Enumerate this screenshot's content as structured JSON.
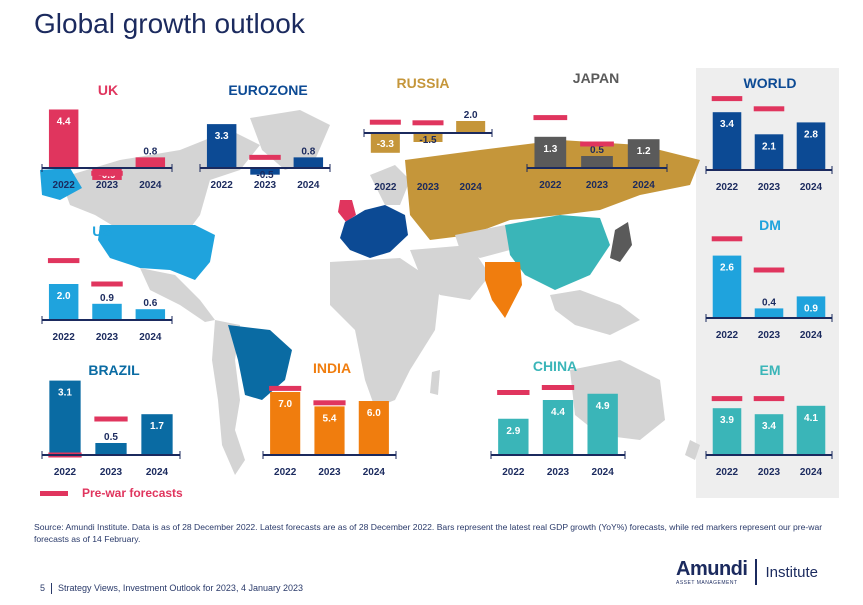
{
  "title": "Global growth outlook",
  "legend": {
    "label": "Pre-war forecasts",
    "color": "#e0355e"
  },
  "source": "Source: Amundi Institute. Data is as of 28 December 2022. Latest forecasts are as of 28 December 2022. Bars represent the latest real GDP growth (YoY%) forecasts, while red markers represent our pre-war forecasts as of 14 February.",
  "footer": {
    "page": "5",
    "text": "Strategy Views, Investment Outlook for 2023, 4 January 2023"
  },
  "logo": {
    "name": "Amundi",
    "sub": "ASSET MANAGEMENT",
    "institute": "Institute"
  },
  "colors": {
    "uk": "#e0355e",
    "eurozone": "#0c4a94",
    "russia": "#c5963a",
    "japan": "#5a5a5a",
    "us": "#1fa3dd",
    "brazil": "#0a6ba3",
    "india": "#f07d0e",
    "china": "#3ab5b8",
    "world": "#0c4a94",
    "dm": "#1fa3dd",
    "em": "#3ab5b8",
    "marker": "#e0355e",
    "map": "#d4d4d4"
  },
  "chart_data": [
    {
      "type": "bar",
      "title": "UK",
      "categories": [
        "2022",
        "2023",
        "2024"
      ],
      "values": [
        4.4,
        -0.9,
        0.8
      ],
      "labels": [
        "4.4",
        "-0.9",
        "0.8"
      ],
      "prewar": [
        null,
        -0.4,
        null
      ]
    },
    {
      "type": "bar",
      "title": "EUROZONE",
      "categories": [
        "2022",
        "2023",
        "2024"
      ],
      "values": [
        3.3,
        -0.5,
        0.8
      ],
      "labels": [
        "3.3",
        "-0.5",
        "0.8"
      ],
      "prewar": [
        null,
        0.8,
        null
      ]
    },
    {
      "type": "bar",
      "title": "RUSSIA",
      "categories": [
        "2022",
        "2023",
        "2024"
      ],
      "values": [
        -3.3,
        -1.5,
        2.0
      ],
      "labels": [
        "-3.3",
        "-1.5",
        "2.0"
      ],
      "prewar": [
        1.8,
        1.7,
        null
      ]
    },
    {
      "type": "bar",
      "title": "JAPAN",
      "categories": [
        "2022",
        "2023",
        "2024"
      ],
      "values": [
        1.3,
        0.5,
        1.2
      ],
      "labels": [
        "1.3",
        "0.5",
        "1.2"
      ],
      "prewar": [
        2.1,
        1.0,
        null
      ]
    },
    {
      "type": "bar",
      "title": "US",
      "categories": [
        "2022",
        "2023",
        "2024"
      ],
      "values": [
        2.0,
        0.9,
        0.6
      ],
      "labels": [
        "2.0",
        "0.9",
        "0.6"
      ],
      "prewar": [
        3.3,
        2.0,
        null
      ]
    },
    {
      "type": "bar",
      "title": "BRAZIL",
      "categories": [
        "2022",
        "2023",
        "2024"
      ],
      "values": [
        3.1,
        0.5,
        1.7
      ],
      "labels": [
        "3.1",
        "0.5",
        "1.7"
      ],
      "prewar": [
        0.0,
        1.5,
        null
      ]
    },
    {
      "type": "bar",
      "title": "INDIA",
      "categories": [
        "2022",
        "2023",
        "2024"
      ],
      "values": [
        7.0,
        5.4,
        6.0
      ],
      "labels": [
        "7.0",
        "5.4",
        "6.0"
      ],
      "prewar": [
        7.4,
        5.8,
        null
      ]
    },
    {
      "type": "bar",
      "title": "CHINA",
      "categories": [
        "2022",
        "2023",
        "2024"
      ],
      "values": [
        2.9,
        4.4,
        4.9
      ],
      "labels": [
        "2.9",
        "4.4",
        "4.9"
      ],
      "prewar": [
        5.0,
        5.4,
        null
      ]
    },
    {
      "type": "bar",
      "title": "WORLD",
      "categories": [
        "2022",
        "2023",
        "2024"
      ],
      "values": [
        3.4,
        2.1,
        2.8
      ],
      "labels": [
        "3.4",
        "2.1",
        "2.8"
      ],
      "prewar": [
        4.2,
        3.6,
        null
      ]
    },
    {
      "type": "bar",
      "title": "DM",
      "categories": [
        "2022",
        "2023",
        "2024"
      ],
      "values": [
        2.6,
        0.4,
        0.9
      ],
      "labels": [
        "2.6",
        "0.4",
        "0.9"
      ],
      "prewar": [
        3.3,
        2.0,
        null
      ]
    },
    {
      "type": "bar",
      "title": "EM",
      "categories": [
        "2022",
        "2023",
        "2024"
      ],
      "values": [
        3.9,
        3.4,
        4.1
      ],
      "labels": [
        "3.9",
        "3.4",
        "4.1"
      ],
      "prewar": [
        4.7,
        4.7,
        null
      ]
    }
  ]
}
